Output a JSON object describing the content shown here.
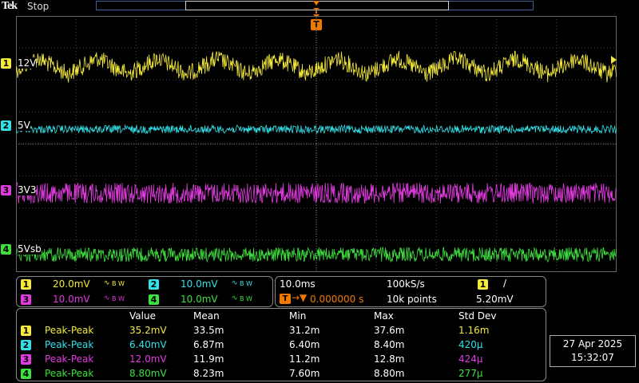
{
  "header": {
    "brand": "Tek",
    "status": "Stop",
    "trigger_marker": "T"
  },
  "colors": {
    "ch1": "#f5ea3c",
    "ch2": "#33e0e8",
    "ch3": "#e23be0",
    "ch4": "#3ee03e",
    "trigger": "#f07a00"
  },
  "channels": [
    {
      "num": "1",
      "label": "12V",
      "color": "#f5ea3c",
      "scale": "20.0mV",
      "bw": "B W"
    },
    {
      "num": "2",
      "label": "5V",
      "color": "#33e0e8",
      "scale": "10.0mV",
      "bw": "B W"
    },
    {
      "num": "3",
      "label": "3V3",
      "color": "#e23be0",
      "scale": "10.0mV",
      "bw": "B W"
    },
    {
      "num": "4",
      "label": "5Vsb",
      "color": "#3ee03e",
      "scale": "10.0mV",
      "bw": "B W"
    }
  ],
  "timebase": {
    "scale": "10.0ms",
    "sample_rate": "100kS/s",
    "trigger_position": "0.000000 s",
    "record_length": "10k points",
    "trigger_channel": "1",
    "trigger_slope": "/",
    "trigger_level": "5.20mV"
  },
  "measurements": {
    "headers": [
      "Value",
      "Mean",
      "Min",
      "Max",
      "Std Dev"
    ],
    "rows": [
      {
        "ch": "1",
        "type": "Peak-Peak",
        "value": "35.2mV",
        "mean": "33.5m",
        "min": "31.2m",
        "max": "37.6m",
        "std": "1.16m"
      },
      {
        "ch": "2",
        "type": "Peak-Peak",
        "value": "6.40mV",
        "mean": "6.87m",
        "min": "6.40m",
        "max": "8.40m",
        "std": "420µ"
      },
      {
        "ch": "3",
        "type": "Peak-Peak",
        "value": "12.0mV",
        "mean": "11.9m",
        "min": "11.2m",
        "max": "12.8m",
        "std": "424µ"
      },
      {
        "ch": "4",
        "type": "Peak-Peak",
        "value": "8.80mV",
        "mean": "8.23m",
        "min": "7.60m",
        "max": "8.80m",
        "std": "277µ"
      }
    ]
  },
  "datetime": {
    "date": "27 Apr 2025",
    "time": "15:32:07"
  }
}
